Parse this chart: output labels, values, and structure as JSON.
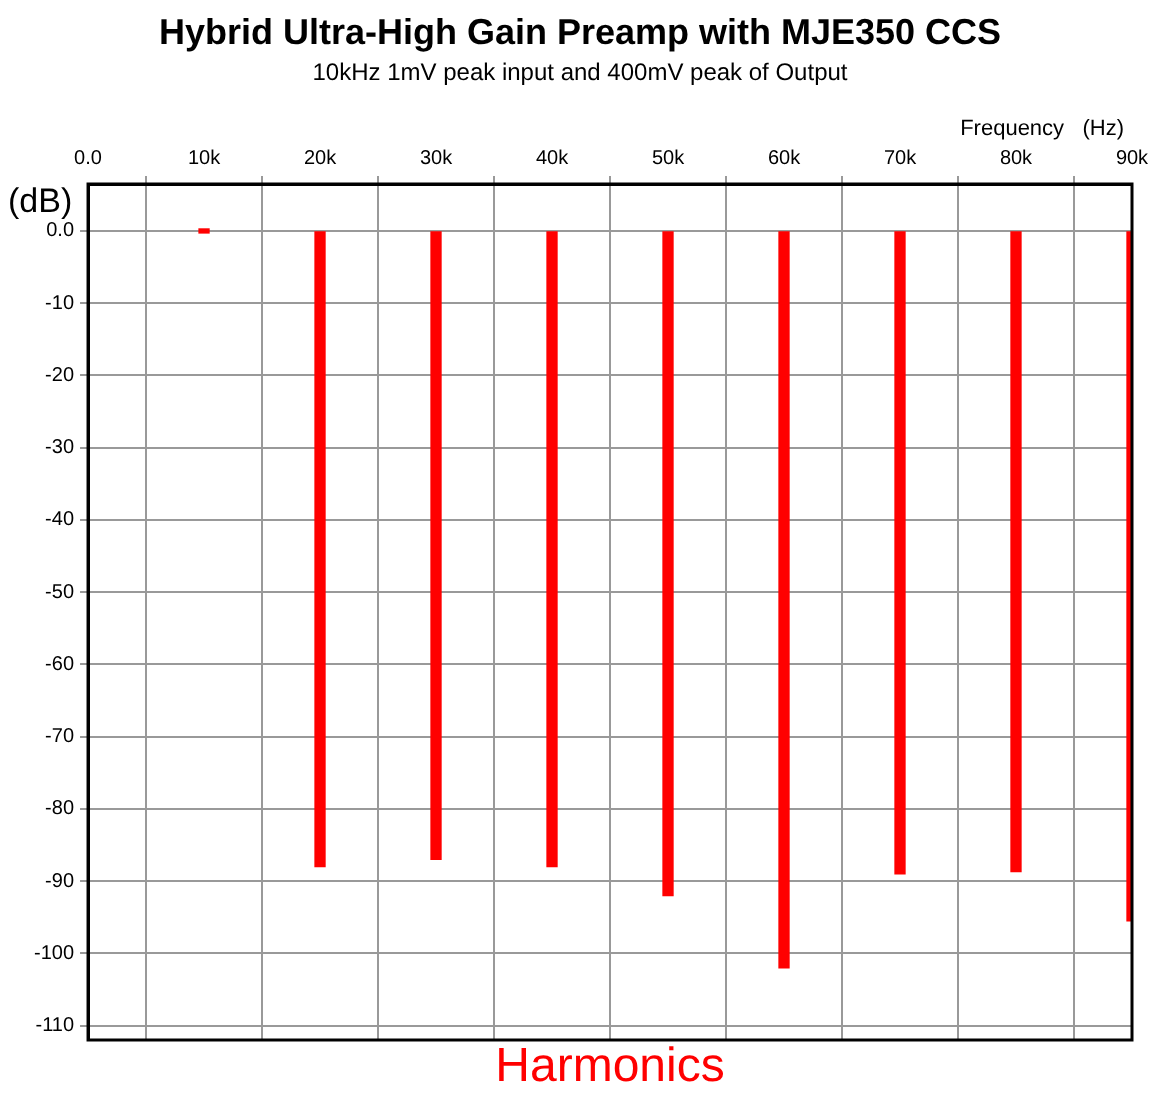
{
  "chart_data": {
    "type": "bar",
    "title": "Hybrid Ultra-High Gain Preamp with MJE350 CCS",
    "subtitle": "10kHz 1mV peak input and 400mV peak of Output",
    "xlabel": "Frequency   (Hz)",
    "ylabel": "(dB)",
    "annotations": [
      "Harmonics"
    ],
    "x": [
      10000,
      20000,
      30000,
      40000,
      50000,
      60000,
      70000,
      80000,
      90000
    ],
    "values": [
      0,
      -88,
      -87,
      -88,
      -92,
      -102,
      -89,
      -88.7,
      -95.5
    ],
    "color": "#ff0000",
    "xlim": [
      0,
      90000
    ],
    "xticks": [
      {
        "value": 0,
        "label": "0.0"
      },
      {
        "value": 10000,
        "label": "10k"
      },
      {
        "value": 20000,
        "label": "20k"
      },
      {
        "value": 30000,
        "label": "30k"
      },
      {
        "value": 40000,
        "label": "40k"
      },
      {
        "value": 50000,
        "label": "50k"
      },
      {
        "value": 60000,
        "label": "60k"
      },
      {
        "value": 70000,
        "label": "70k"
      },
      {
        "value": 80000,
        "label": "80k"
      },
      {
        "value": 90000,
        "label": "90k"
      }
    ],
    "ylim": [
      -112,
      6.5
    ],
    "yticks": [
      {
        "value": 0,
        "label": "0.0"
      },
      -10,
      -20,
      -30,
      -40,
      -50,
      -60,
      -70,
      -80,
      -90,
      -100,
      -110
    ],
    "grid": true
  }
}
